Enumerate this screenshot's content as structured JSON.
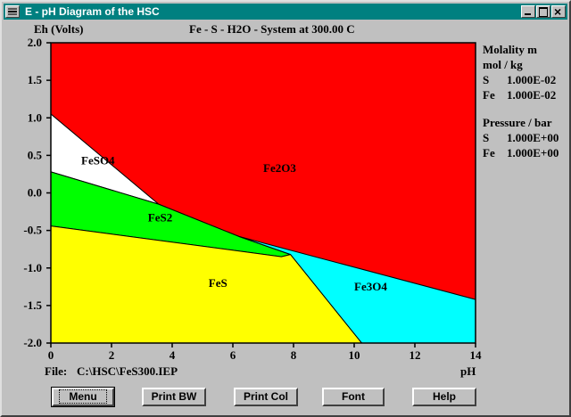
{
  "window": {
    "title": "E - pH Diagram of the HSC"
  },
  "header": {
    "ylabel": "Eh (Volts)",
    "title": "Fe - S - H2O - System at 300.00 C"
  },
  "footer": {
    "file_label": "File:",
    "file_path": "C:\\HSC\\FeS300.IEP",
    "xlabel": "pH"
  },
  "legend": {
    "molality_title": "Molality m",
    "molality_unit": "mol / kg",
    "molality_rows": [
      {
        "element": "S",
        "value": "1.000E-02"
      },
      {
        "element": "Fe",
        "value": "1.000E-02"
      }
    ],
    "pressure_title": "Pressure / bar",
    "pressure_rows": [
      {
        "element": "S",
        "value": "1.000E+00"
      },
      {
        "element": "Fe",
        "value": "1.000E+00"
      }
    ]
  },
  "buttons": {
    "menu": "Menu",
    "print_bw": "Print BW",
    "print_col": "Print Col",
    "font": "Font",
    "help": "Help"
  },
  "chart_data": {
    "type": "area",
    "xlabel": "pH",
    "ylabel": "Eh (Volts)",
    "xlim": [
      0,
      14
    ],
    "ylim": [
      -2.0,
      2.0
    ],
    "x_ticks": [
      0,
      2,
      4,
      6,
      8,
      10,
      12,
      14
    ],
    "y_ticks": [
      2.0,
      1.5,
      1.0,
      0.5,
      0.0,
      -0.5,
      -1.0,
      -1.5,
      -2.0
    ],
    "x_tick_labels": [
      "0",
      "2",
      "4",
      "6",
      "8",
      "10",
      "12",
      "14"
    ],
    "y_tick_labels": [
      "2.0",
      "1.5",
      "1.0",
      "0.5",
      "0.0",
      "-0.5",
      "-1.0",
      "-1.5",
      "-2.0"
    ],
    "grid": false,
    "regions": [
      {
        "name": "Fe2O3",
        "color": "#ff0000",
        "polygon": [
          [
            0,
            2.0
          ],
          [
            14,
            2.0
          ],
          [
            14,
            -1.42
          ],
          [
            7.9,
            -0.82
          ],
          [
            6.2,
            -0.58
          ],
          [
            3.55,
            -0.15
          ],
          [
            0,
            1.05
          ]
        ],
        "label_at": [
          7.0,
          0.28
        ]
      },
      {
        "name": "FeSO4",
        "color": "#ffffff",
        "polygon": [
          [
            0,
            1.05
          ],
          [
            3.55,
            -0.15
          ],
          [
            0,
            0.28
          ]
        ],
        "label_at": [
          1.0,
          0.38
        ]
      },
      {
        "name": "FeS2",
        "color": "#00ff00",
        "polygon": [
          [
            0,
            0.28
          ],
          [
            3.55,
            -0.15
          ],
          [
            6.2,
            -0.58
          ],
          [
            7.9,
            -0.82
          ],
          [
            7.6,
            -0.85
          ],
          [
            0,
            -0.44
          ]
        ],
        "label_at": [
          3.2,
          -0.38
        ]
      },
      {
        "name": "FeS",
        "color": "#ffff00",
        "polygon": [
          [
            0,
            -0.44
          ],
          [
            7.6,
            -0.85
          ],
          [
            7.9,
            -0.82
          ],
          [
            10.25,
            -2.0
          ],
          [
            0,
            -2.0
          ]
        ],
        "label_at": [
          5.2,
          -1.25
        ]
      },
      {
        "name": "Fe3O4",
        "color": "#00ffff",
        "polygon": [
          [
            6.2,
            -0.58
          ],
          [
            14,
            -1.42
          ],
          [
            14,
            -2.0
          ],
          [
            10.25,
            -2.0
          ],
          [
            7.9,
            -0.82
          ]
        ],
        "label_at": [
          10.0,
          -1.3
        ]
      }
    ],
    "colors": {
      "axes": "#000000",
      "boundary": "#000000"
    }
  }
}
